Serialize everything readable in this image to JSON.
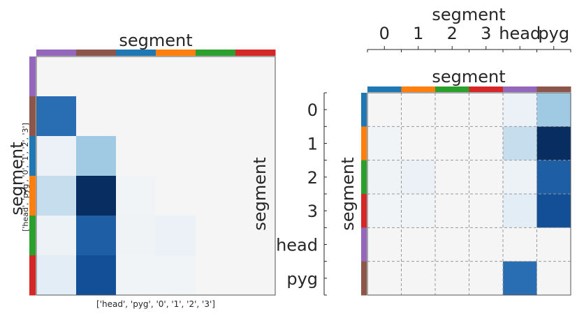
{
  "colors": {
    "head": "#9467bd",
    "pyg": "#8c564b",
    "0": "#1f77b4",
    "1": "#ff7f0e",
    "2": "#2ca02c",
    "3": "#d62728",
    "empty": "#f5f5f5"
  },
  "chart_data": [
    {
      "type": "heatmap",
      "title": "segment",
      "ylabel": "segment",
      "sublabel": "['head', 'pyg', '0', '1', '2', '3']",
      "xlabel": "['head', 'pyg', '0', '1', '2', '3']",
      "order": [
        "head",
        "pyg",
        "0",
        "1",
        "2",
        "3"
      ],
      "colormap": "Blues",
      "vmin": 0,
      "vmax": 1,
      "values": [
        [
          0.0,
          0.0,
          0.0,
          0.0,
          0.0,
          0.0
        ],
        [
          0.68,
          0.0,
          0.0,
          0.0,
          0.0,
          0.0
        ],
        [
          0.08,
          0.38,
          0.0,
          0.0,
          0.0,
          0.0
        ],
        [
          0.25,
          1.0,
          0.03,
          0.0,
          0.0,
          0.0
        ],
        [
          0.06,
          0.75,
          0.04,
          0.08,
          0.0,
          0.0
        ],
        [
          0.12,
          0.82,
          0.03,
          0.03,
          0.0,
          0.0
        ]
      ]
    },
    {
      "type": "heatmap",
      "title": "segment",
      "ylabel": "segment",
      "top_axis_label": "segment",
      "left_axis_label": "segment",
      "xticks": [
        "0",
        "1",
        "2",
        "3",
        "head",
        "pyg"
      ],
      "yticks": [
        "0",
        "1",
        "2",
        "3",
        "head",
        "pyg"
      ],
      "order": [
        "0",
        "1",
        "2",
        "3",
        "head",
        "pyg"
      ],
      "colormap": "Blues",
      "vmin": 0,
      "vmax": 1,
      "grid": true,
      "values": [
        [
          0.0,
          0.0,
          0.0,
          0.0,
          0.08,
          0.38
        ],
        [
          0.03,
          0.0,
          0.0,
          0.0,
          0.25,
          1.0
        ],
        [
          0.04,
          0.08,
          0.0,
          0.0,
          0.06,
          0.75
        ],
        [
          0.03,
          0.03,
          0.0,
          0.0,
          0.12,
          0.82
        ],
        [
          0.0,
          0.0,
          0.0,
          0.0,
          0.0,
          0.0
        ],
        [
          0.0,
          0.0,
          0.0,
          0.0,
          0.68,
          0.0
        ]
      ]
    }
  ]
}
